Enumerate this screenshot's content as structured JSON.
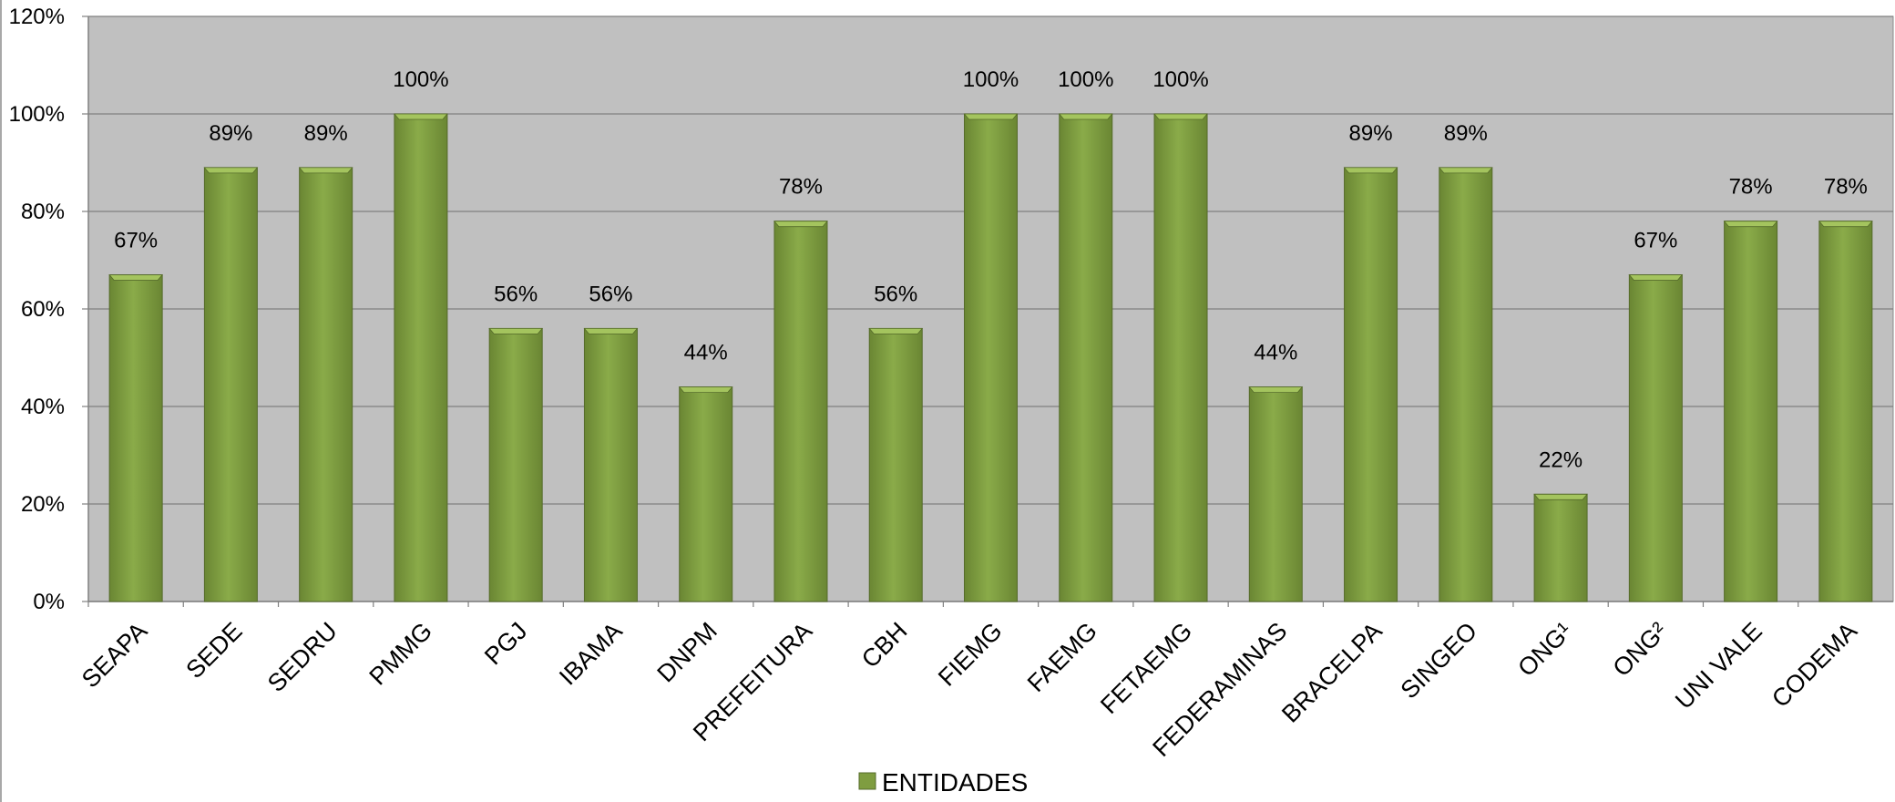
{
  "chart_data": {
    "type": "bar",
    "categories": [
      "SEAPA",
      "SEDE",
      "SEDRU",
      "PMMG",
      "PGJ",
      "IBAMA",
      "DNPM",
      "PREFEITURA",
      "CBH",
      "FIEMG",
      "FAEMG",
      "FETAEMG",
      "FEDERAMINAS",
      "BRACELPA",
      "SINGEO",
      "ONG¹",
      "ONG²",
      "UNI VALE",
      "CODEMA"
    ],
    "series": [
      {
        "name": "ENTIDADES",
        "values": [
          67,
          89,
          89,
          100,
          56,
          56,
          44,
          78,
          56,
          100,
          100,
          100,
          44,
          89,
          89,
          22,
          67,
          78,
          78
        ],
        "data_labels": [
          "67%",
          "89%",
          "89%",
          "100%",
          "56%",
          "56%",
          "44%",
          "78%",
          "56%",
          "100%",
          "100%",
          "100%",
          "44%",
          "89%",
          "89%",
          "22%",
          "67%",
          "78%",
          "78%"
        ]
      }
    ],
    "ylim": [
      0,
      120
    ],
    "yticks": [
      0,
      20,
      40,
      60,
      80,
      100,
      120
    ],
    "ytick_labels": [
      "0%",
      "20%",
      "40%",
      "60%",
      "80%",
      "100%",
      "120%"
    ],
    "title": "",
    "xlabel": "",
    "ylabel": "",
    "grid": true,
    "legend_position": "bottom",
    "colors": {
      "plot_background": "#c0c0c0",
      "bar_fill": "#7f9d40",
      "bar_top": "#a4c45e",
      "bar_edge": "#556b2a",
      "gridline": "#808080"
    }
  }
}
